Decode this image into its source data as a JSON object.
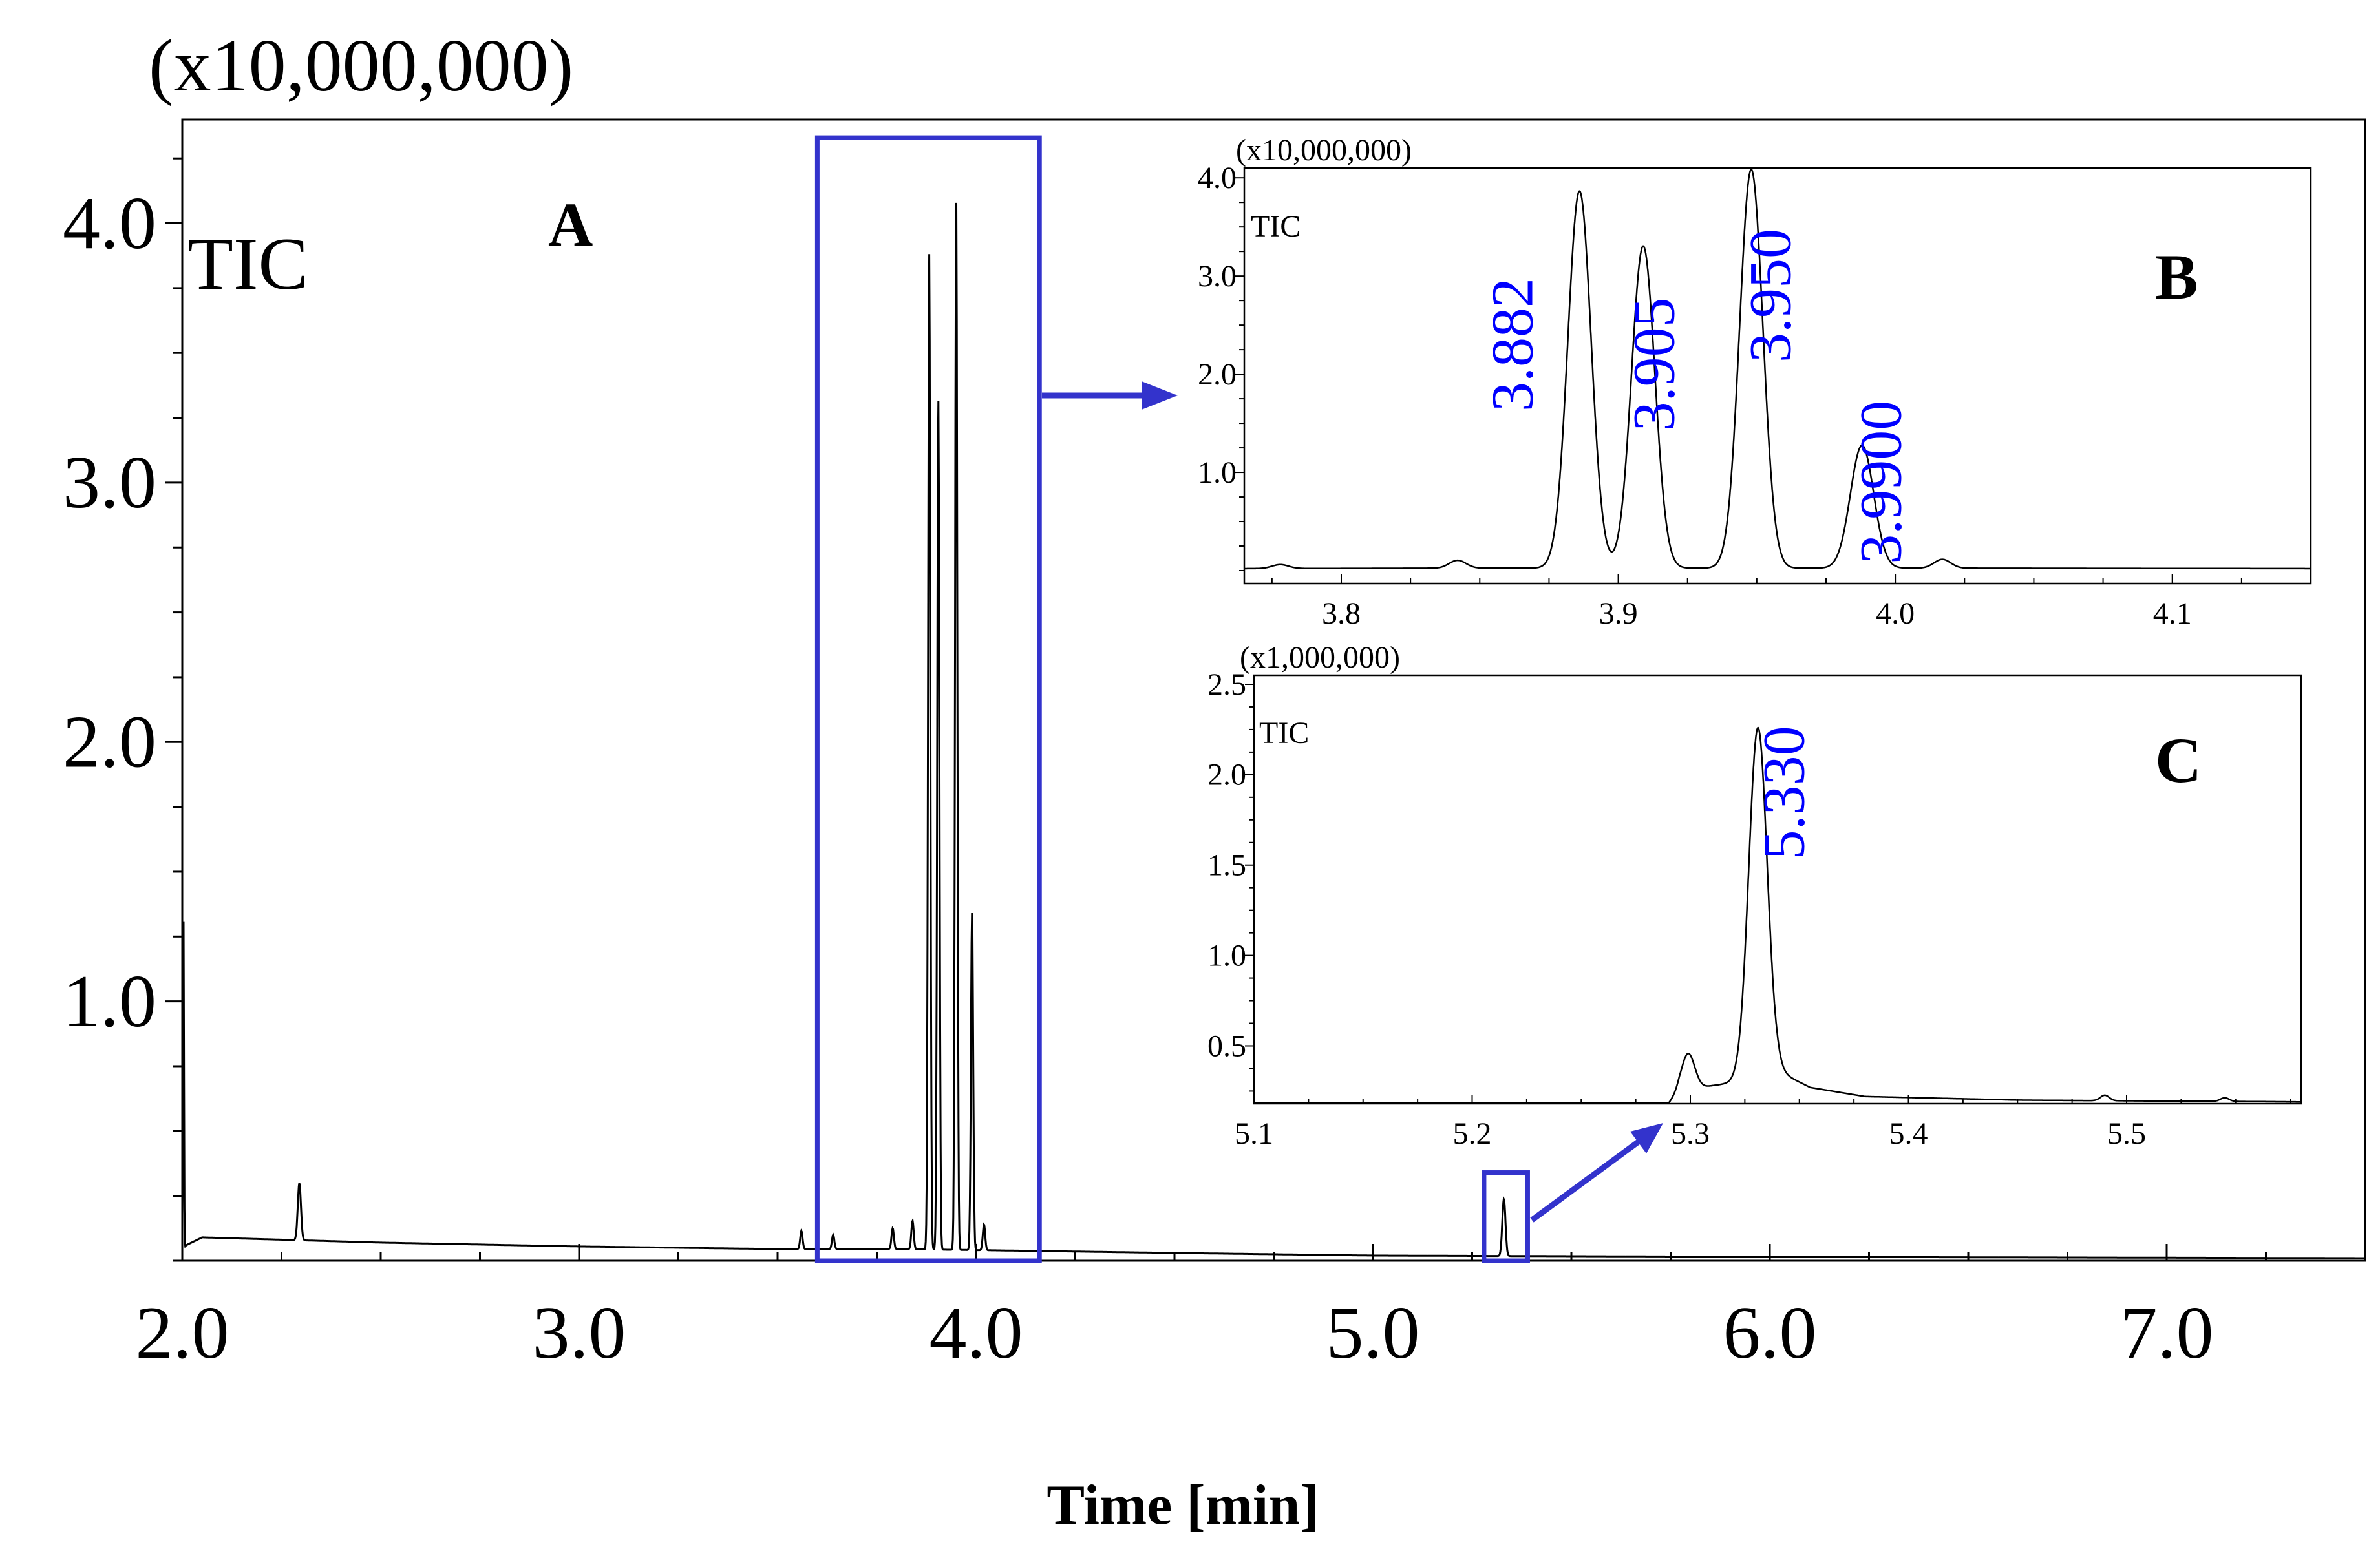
{
  "colors": {
    "axis": "#000000",
    "trace": "#000000",
    "highlight": "#3333cc",
    "peak_label": "#0000ff",
    "background": "#ffffff"
  },
  "chart_data": [
    {
      "id": "A",
      "type": "line",
      "panel_label": "A",
      "trace_label": "TIC",
      "scale_label": "(x10,000,000)",
      "xlabel": "Time [min]",
      "xlim": [
        2.0,
        7.5
      ],
      "ylim": [
        0,
        4.4
      ],
      "x_ticks": [
        2.0,
        3.0,
        4.0,
        5.0,
        6.0,
        7.0
      ],
      "x_tick_labels": [
        "2.0",
        "3.0",
        "4.0",
        "5.0",
        "6.0",
        "7.0"
      ],
      "y_ticks": [
        1.0,
        2.0,
        3.0,
        4.0
      ],
      "y_tick_labels": [
        "1.0",
        "2.0",
        "3.0",
        "4.0"
      ],
      "baseline": [
        [
          2.0,
          0.04
        ],
        [
          2.01,
          0.06
        ],
        [
          2.05,
          0.09
        ],
        [
          2.5,
          0.07
        ],
        [
          3.0,
          0.055
        ],
        [
          3.5,
          0.045
        ],
        [
          3.8,
          0.045
        ],
        [
          4.05,
          0.04
        ],
        [
          4.5,
          0.03
        ],
        [
          5.0,
          0.02
        ],
        [
          6.0,
          0.015
        ],
        [
          7.5,
          0.01
        ]
      ],
      "peaks": [
        {
          "x": 2.003,
          "y": 1.3,
          "w": 0.0012
        },
        {
          "x": 2.295,
          "y": 0.22,
          "w": 0.004
        },
        {
          "x": 3.56,
          "y": 0.07,
          "w": 0.003
        },
        {
          "x": 3.64,
          "y": 0.055,
          "w": 0.003
        },
        {
          "x": 3.79,
          "y": 0.08,
          "w": 0.003
        },
        {
          "x": 3.84,
          "y": 0.11,
          "w": 0.003
        },
        {
          "x": 3.882,
          "y": 3.84,
          "w": 0.0028
        },
        {
          "x": 3.905,
          "y": 3.28,
          "w": 0.0028
        },
        {
          "x": 3.95,
          "y": 4.06,
          "w": 0.0028
        },
        {
          "x": 3.99,
          "y": 1.3,
          "w": 0.0028
        },
        {
          "x": 4.02,
          "y": 0.1,
          "w": 0.003
        },
        {
          "x": 5.33,
          "y": 0.22,
          "w": 0.004
        }
      ],
      "highlight_windows": [
        {
          "xlim": [
            3.6,
            4.16
          ],
          "ylim": [
            0,
            4.33
          ]
        },
        {
          "xlim": [
            5.28,
            5.39
          ],
          "ylim": [
            0,
            0.34
          ]
        }
      ]
    },
    {
      "id": "B",
      "type": "line",
      "panel_label": "B",
      "trace_label": "TIC",
      "scale_label": "(x10,000,000)",
      "xlim": [
        3.765,
        4.15
      ],
      "ylim": [
        0,
        4.1
      ],
      "x_ticks": [
        3.8,
        3.9,
        4.0,
        4.1
      ],
      "x_tick_labels": [
        "3.8",
        "3.9",
        "4.0",
        "4.1"
      ],
      "y_ticks": [
        1.0,
        2.0,
        3.0,
        4.0
      ],
      "y_tick_labels": [
        "1.0",
        "2.0",
        "3.0",
        "4.0"
      ],
      "baseline": [
        [
          3.765,
          0.02
        ],
        [
          3.85,
          0.025
        ],
        [
          4.0,
          0.025
        ],
        [
          4.15,
          0.02
        ]
      ],
      "peaks": [
        {
          "x": 3.778,
          "y": 0.04,
          "w": 0.003
        },
        {
          "x": 3.842,
          "y": 0.08,
          "w": 0.003
        },
        {
          "x": 3.886,
          "y": 3.84,
          "w": 0.0042
        },
        {
          "x": 3.909,
          "y": 3.28,
          "w": 0.0042
        },
        {
          "x": 3.948,
          "y": 4.06,
          "w": 0.0042
        },
        {
          "x": 3.988,
          "y": 1.25,
          "w": 0.0042
        },
        {
          "x": 4.017,
          "y": 0.09,
          "w": 0.003
        }
      ],
      "peak_labels": [
        {
          "text": "3.882",
          "x": 3.869,
          "y": 2.3
        },
        {
          "text": "3.905",
          "x": 3.92,
          "y": 2.1
        },
        {
          "text": "3.950",
          "x": 3.962,
          "y": 2.8
        },
        {
          "text": "3.9900",
          "x": 4.002,
          "y": 0.9
        }
      ]
    },
    {
      "id": "C",
      "type": "line",
      "panel_label": "C",
      "trace_label": "TIC",
      "scale_label": "(x1,000,000)",
      "xlim": [
        5.1,
        5.58
      ],
      "ylim": [
        0.18,
        2.55
      ],
      "x_ticks": [
        5.1,
        5.2,
        5.3,
        5.4,
        5.5
      ],
      "x_tick_labels": [
        "5.1",
        "5.2",
        "5.3",
        "5.4",
        "5.5"
      ],
      "y_ticks": [
        0.5,
        1.0,
        1.5,
        2.0,
        2.5
      ],
      "y_tick_labels": [
        "0.5",
        "1.0",
        "1.5",
        "2.0",
        "2.5"
      ],
      "baseline": [
        [
          5.29,
          0.18
        ],
        [
          5.295,
          0.25
        ],
        [
          5.31,
          0.28
        ],
        [
          5.322,
          0.3
        ],
        [
          5.34,
          0.36
        ],
        [
          5.355,
          0.27
        ],
        [
          5.38,
          0.22
        ],
        [
          5.45,
          0.2
        ],
        [
          5.58,
          0.19
        ]
      ],
      "peaks": [
        {
          "x": 5.299,
          "y": 0.2,
          "w": 0.003
        },
        {
          "x": 5.331,
          "y": 1.93,
          "w": 0.0042
        },
        {
          "x": 5.49,
          "y": 0.03,
          "w": 0.002
        },
        {
          "x": 5.545,
          "y": 0.02,
          "w": 0.002
        }
      ],
      "peak_labels": [
        {
          "text": "5.330",
          "x": 5.352,
          "y": 1.9
        }
      ]
    }
  ]
}
